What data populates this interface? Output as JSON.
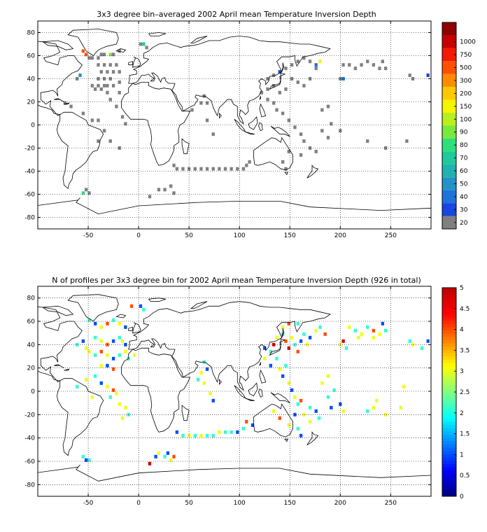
{
  "chart_data": [
    {
      "type": "heatmap",
      "title": "3x3 degree bin–averaged 2002 April mean Temperature Inversion Depth",
      "xlim": [
        -100,
        290
      ],
      "ylim": [
        -90,
        90
      ],
      "xticks": [
        "-50",
        "0",
        "50",
        "100",
        "150",
        "200",
        "250"
      ],
      "yticks": [
        "80",
        "60",
        "40",
        "20",
        "0",
        "-20",
        "-40",
        "-60",
        "-80"
      ],
      "grid": true,
      "colorbar": {
        "labels": [
          "20",
          "30",
          "40",
          "50",
          "60",
          "70",
          "80",
          "90",
          "100",
          "150",
          "200",
          "300",
          "500",
          "750",
          "1000"
        ],
        "colors": [
          "#808080",
          "#1846e0",
          "#1f72d8",
          "#2193c6",
          "#1fb2b0",
          "#1ec99b",
          "#2ee07a",
          "#7ae93e",
          "#b8ef1c",
          "#f5f500",
          "#ffc800",
          "#ff8c00",
          "#ff5000",
          "#f31a00",
          "#c80000",
          "#8f0000"
        ]
      },
      "cells": [
        [
          -55,
          64,
          12
        ],
        [
          -52,
          61,
          12
        ],
        [
          -49,
          58,
          0
        ],
        [
          -46,
          58,
          0
        ],
        [
          -40,
          58,
          0
        ],
        [
          -37,
          61,
          0
        ],
        [
          -34,
          61,
          0
        ],
        [
          -28,
          61,
          7
        ],
        [
          -25,
          61,
          0
        ],
        [
          -19,
          64,
          0
        ],
        [
          2,
          70,
          0
        ],
        [
          5,
          70,
          5
        ],
        [
          8,
          67,
          0
        ],
        [
          -40,
          52,
          0
        ],
        [
          -34,
          52,
          0
        ],
        [
          -28,
          52,
          0
        ],
        [
          -22,
          52,
          0
        ],
        [
          -37,
          46,
          0
        ],
        [
          -31,
          46,
          0
        ],
        [
          -25,
          46,
          0
        ],
        [
          -19,
          46,
          0
        ],
        [
          -58,
          43,
          3
        ],
        [
          -61,
          40,
          0
        ],
        [
          -40,
          40,
          0
        ],
        [
          -34,
          40,
          0
        ],
        [
          -28,
          40,
          0
        ],
        [
          -19,
          37,
          0
        ],
        [
          -46,
          34,
          0
        ],
        [
          -40,
          34,
          0
        ],
        [
          -34,
          34,
          0
        ],
        [
          -31,
          34,
          0
        ],
        [
          -25,
          34,
          0
        ],
        [
          -43,
          31,
          0
        ],
        [
          -37,
          31,
          0
        ],
        [
          -31,
          28,
          0
        ],
        [
          -19,
          28,
          0
        ],
        [
          -28,
          22,
          0
        ],
        [
          -22,
          16,
          0
        ],
        [
          -16,
          7,
          0
        ],
        [
          -13,
          1,
          0
        ],
        [
          -73,
          19,
          0
        ],
        [
          -67,
          16,
          0
        ],
        [
          -55,
          10,
          0
        ],
        [
          -46,
          4,
          0
        ],
        [
          -40,
          4,
          0
        ],
        [
          -34,
          -5,
          0
        ],
        [
          -40,
          -14,
          0
        ],
        [
          -28,
          -14,
          0
        ],
        [
          -19,
          -20,
          0
        ],
        [
          65,
          25,
          0
        ],
        [
          62,
          19,
          0
        ],
        [
          68,
          19,
          0
        ],
        [
          53,
          13,
          0
        ],
        [
          68,
          4,
          0
        ],
        [
          74,
          -8,
          0
        ],
        [
          35,
          -35,
          0
        ],
        [
          38,
          -38,
          0
        ],
        [
          44,
          -38,
          0
        ],
        [
          50,
          -38,
          0
        ],
        [
          56,
          -38,
          0
        ],
        [
          62,
          -38,
          0
        ],
        [
          68,
          -38,
          0
        ],
        [
          74,
          -38,
          0
        ],
        [
          80,
          -38,
          0
        ],
        [
          86,
          -38,
          0
        ],
        [
          92,
          -38,
          0
        ],
        [
          98,
          -38,
          0
        ],
        [
          104,
          -38,
          0
        ],
        [
          107,
          -35,
          0
        ],
        [
          110,
          -32,
          0
        ],
        [
          20,
          -56,
          0
        ],
        [
          26,
          -56,
          0
        ],
        [
          32,
          -53,
          0
        ],
        [
          35,
          -59,
          0
        ],
        [
          11,
          -62,
          0
        ],
        [
          -52,
          -56,
          0
        ],
        [
          -55,
          -59,
          6
        ],
        [
          -49,
          -59,
          0
        ],
        [
          128,
          40,
          0
        ],
        [
          134,
          43,
          0
        ],
        [
          140,
          46,
          1
        ],
        [
          146,
          49,
          0
        ],
        [
          152,
          52,
          0
        ],
        [
          158,
          55,
          0
        ],
        [
          164,
          58,
          0
        ],
        [
          170,
          55,
          0
        ],
        [
          176,
          52,
          2
        ],
        [
          180,
          55,
          9
        ],
        [
          176,
          49,
          0
        ],
        [
          152,
          40,
          0
        ],
        [
          158,
          37,
          0
        ],
        [
          164,
          34,
          0
        ],
        [
          170,
          40,
          0
        ],
        [
          146,
          31,
          0
        ],
        [
          140,
          28,
          0
        ],
        [
          134,
          34,
          0
        ],
        [
          128,
          31,
          0
        ],
        [
          122,
          28,
          0
        ],
        [
          128,
          22,
          0
        ],
        [
          134,
          19,
          0
        ],
        [
          137,
          13,
          0
        ],
        [
          143,
          10,
          0
        ],
        [
          149,
          4,
          0
        ],
        [
          155,
          -2,
          0
        ],
        [
          161,
          -8,
          0
        ],
        [
          164,
          -14,
          0
        ],
        [
          170,
          -20,
          0
        ],
        [
          176,
          -23,
          0
        ],
        [
          149,
          -23,
          0
        ],
        [
          161,
          -26,
          0
        ],
        [
          143,
          -32,
          0
        ],
        [
          146,
          -38,
          0
        ],
        [
          182,
          13,
          0
        ],
        [
          188,
          16,
          0
        ],
        [
          182,
          -5,
          0
        ],
        [
          188,
          -11,
          0
        ],
        [
          191,
          1,
          0
        ],
        [
          200,
          -5,
          0
        ],
        [
          221,
          52,
          0
        ],
        [
          227,
          55,
          0
        ],
        [
          233,
          52,
          0
        ],
        [
          239,
          49,
          0
        ],
        [
          245,
          49,
          0
        ],
        [
          242,
          55,
          0
        ],
        [
          209,
          52,
          0
        ],
        [
          203,
          52,
          0
        ],
        [
          215,
          49,
          0
        ],
        [
          266,
          -14,
          0
        ],
        [
          245,
          -20,
          0
        ],
        [
          227,
          -14,
          0
        ],
        [
          269,
          43,
          0
        ],
        [
          272,
          40,
          0
        ],
        [
          287,
          43,
          1
        ],
        [
          203,
          40,
          2
        ],
        [
          200,
          40,
          0
        ]
      ]
    },
    {
      "type": "heatmap",
      "title": "N of profiles per 3x3 degree bin for 2002 April mean Temperature Inversion Depth  (926 in total)",
      "xlim": [
        -100,
        290
      ],
      "ylim": [
        -90,
        90
      ],
      "xticks": [
        "-50",
        "0",
        "50",
        "100",
        "150",
        "200",
        "250"
      ],
      "yticks": [
        "80",
        "60",
        "40",
        "20",
        "0",
        "-20",
        "-40",
        "-60",
        "-80"
      ],
      "grid": true,
      "clim": [
        0,
        5
      ],
      "colorbar": {
        "labels": [
          "0",
          "0.5",
          "1",
          "1.5",
          "2",
          "2.5",
          "3",
          "3.5",
          "4",
          "4.5",
          "5"
        ]
      },
      "cells": [
        [
          -49,
          61,
          2
        ],
        [
          -43,
          58,
          1
        ],
        [
          -37,
          55,
          3
        ],
        [
          -31,
          58,
          4
        ],
        [
          -25,
          61,
          2
        ],
        [
          -19,
          58,
          3
        ],
        [
          -13,
          55,
          1
        ],
        [
          2,
          73,
          1
        ],
        [
          5,
          70,
          2
        ],
        [
          -7,
          73,
          4
        ],
        [
          -55,
          43,
          1
        ],
        [
          -61,
          40,
          2
        ],
        [
          -52,
          37,
          3
        ],
        [
          -43,
          46,
          2
        ],
        [
          -37,
          43,
          3
        ],
        [
          -31,
          40,
          4
        ],
        [
          -25,
          43,
          1
        ],
        [
          -19,
          46,
          2
        ],
        [
          -16,
          43,
          3
        ],
        [
          -13,
          40,
          1
        ],
        [
          -49,
          34,
          3
        ],
        [
          -43,
          31,
          2
        ],
        [
          -37,
          34,
          4
        ],
        [
          -31,
          31,
          3
        ],
        [
          -25,
          28,
          1
        ],
        [
          -19,
          31,
          2
        ],
        [
          -13,
          34,
          3
        ],
        [
          -10,
          28,
          2
        ],
        [
          -4,
          31,
          3
        ],
        [
          -37,
          22,
          3
        ],
        [
          -31,
          22,
          1
        ],
        [
          -25,
          19,
          4
        ],
        [
          -43,
          13,
          2
        ],
        [
          -37,
          7,
          1
        ],
        [
          -31,
          4,
          3
        ],
        [
          -25,
          1,
          4
        ],
        [
          -52,
          10,
          3
        ],
        [
          -61,
          4,
          2
        ],
        [
          -46,
          -5,
          3
        ],
        [
          -28,
          -5,
          2
        ],
        [
          -22,
          -2,
          3
        ],
        [
          -19,
          -11,
          3
        ],
        [
          -13,
          -14,
          3
        ],
        [
          -10,
          -20,
          2
        ],
        [
          -16,
          -23,
          3
        ],
        [
          65,
          25,
          2
        ],
        [
          62,
          16,
          3
        ],
        [
          68,
          19,
          1
        ],
        [
          59,
          10,
          2
        ],
        [
          65,
          7,
          3
        ],
        [
          71,
          -2,
          3
        ],
        [
          74,
          -8,
          1
        ],
        [
          38,
          -35,
          1
        ],
        [
          44,
          -38,
          2
        ],
        [
          50,
          -38,
          3
        ],
        [
          56,
          -38,
          2
        ],
        [
          62,
          -38,
          3
        ],
        [
          68,
          -38,
          2
        ],
        [
          74,
          -38,
          2
        ],
        [
          80,
          -35,
          3
        ],
        [
          86,
          -35,
          2
        ],
        [
          92,
          -35,
          2
        ],
        [
          98,
          -35,
          1
        ],
        [
          104,
          -32,
          2
        ],
        [
          107,
          -26,
          4
        ],
        [
          113,
          -29,
          1
        ],
        [
          17,
          -56,
          1
        ],
        [
          20,
          -53,
          3
        ],
        [
          26,
          -56,
          2
        ],
        [
          29,
          -53,
          1
        ],
        [
          32,
          -59,
          3
        ],
        [
          35,
          -56,
          4
        ],
        [
          11,
          -62,
          5
        ],
        [
          -55,
          -56,
          2
        ],
        [
          -52,
          -59,
          1
        ],
        [
          -49,
          -59,
          2
        ],
        [
          125,
          37,
          1
        ],
        [
          131,
          34,
          2
        ],
        [
          134,
          40,
          5
        ],
        [
          137,
          46,
          3
        ],
        [
          143,
          49,
          2
        ],
        [
          146,
          43,
          4
        ],
        [
          149,
          37,
          5
        ],
        [
          152,
          46,
          3
        ],
        [
          155,
          40,
          2
        ],
        [
          158,
          34,
          4
        ],
        [
          161,
          43,
          1
        ],
        [
          164,
          49,
          2
        ],
        [
          167,
          40,
          3
        ],
        [
          170,
          46,
          1
        ],
        [
          176,
          52,
          3
        ],
        [
          180,
          55,
          2
        ],
        [
          185,
          49,
          4
        ],
        [
          143,
          55,
          3
        ],
        [
          149,
          58,
          4
        ],
        [
          158,
          58,
          2
        ],
        [
          125,
          28,
          3
        ],
        [
          131,
          22,
          1
        ],
        [
          137,
          28,
          2
        ],
        [
          140,
          19,
          3
        ],
        [
          143,
          13,
          1
        ],
        [
          146,
          22,
          2
        ],
        [
          149,
          7,
          3
        ],
        [
          152,
          1,
          1
        ],
        [
          155,
          -5,
          3
        ],
        [
          158,
          -11,
          2
        ],
        [
          161,
          -8,
          4
        ],
        [
          164,
          -20,
          3
        ],
        [
          170,
          -14,
          2
        ],
        [
          176,
          -17,
          1
        ],
        [
          179,
          -23,
          2
        ],
        [
          170,
          -26,
          3
        ],
        [
          155,
          -20,
          1
        ],
        [
          149,
          -29,
          3
        ],
        [
          158,
          -32,
          2
        ],
        [
          140,
          -23,
          4
        ],
        [
          134,
          -17,
          3
        ],
        [
          161,
          -38,
          1
        ],
        [
          188,
          -5,
          2
        ],
        [
          191,
          -14,
          1
        ],
        [
          182,
          7,
          3
        ],
        [
          188,
          13,
          3
        ],
        [
          194,
          1,
          2
        ],
        [
          200,
          -11,
          1
        ],
        [
          203,
          -17,
          3
        ],
        [
          209,
          55,
          3
        ],
        [
          215,
          52,
          2
        ],
        [
          221,
          49,
          3
        ],
        [
          227,
          55,
          2
        ],
        [
          233,
          52,
          4
        ],
        [
          239,
          49,
          3
        ],
        [
          245,
          52,
          2
        ],
        [
          242,
          58,
          1
        ],
        [
          233,
          46,
          3
        ],
        [
          218,
          46,
          3
        ],
        [
          203,
          43,
          5
        ],
        [
          200,
          40,
          3
        ],
        [
          206,
          37,
          2
        ],
        [
          269,
          43,
          2
        ],
        [
          272,
          40,
          3
        ],
        [
          287,
          43,
          1
        ],
        [
          281,
          37,
          2
        ],
        [
          263,
          4,
          3
        ],
        [
          260,
          -14,
          3
        ],
        [
          245,
          -20,
          3
        ],
        [
          233,
          -14,
          3
        ],
        [
          227,
          -17,
          2
        ],
        [
          236,
          -8,
          3
        ]
      ]
    }
  ],
  "colors": {
    "grey_bin": "#808080",
    "land": "#ffffff",
    "coast": "#000000"
  }
}
